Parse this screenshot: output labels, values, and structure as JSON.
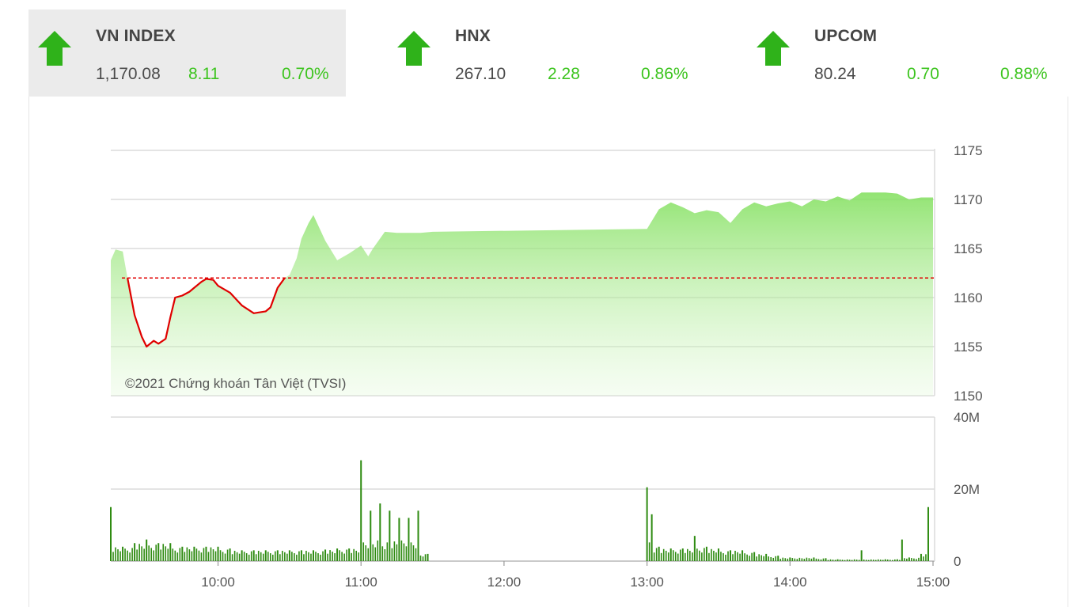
{
  "indices": [
    {
      "name": "VN INDEX",
      "price": "1,170.08",
      "change": "8.11",
      "percent": "0.70%",
      "direction": "up",
      "active": true
    },
    {
      "name": "HNX",
      "price": "267.10",
      "change": "2.28",
      "percent": "0.86%",
      "direction": "up",
      "active": false
    },
    {
      "name": "UPCOM",
      "price": "80.24",
      "change": "0.70",
      "percent": "0.88%",
      "direction": "up",
      "active": false
    }
  ],
  "colors": {
    "up": "#3cc41e",
    "arrow": "#2fb21a",
    "line_below_ref": "#e00000",
    "area_fill": "#9ee87e",
    "reference_line": "#e00000",
    "volume_bar": "#2e8b11",
    "grid": "#dcdcdc"
  },
  "copyright": "©2021 Chứng khoán Tân Việt (TVSI)",
  "chart_data": [
    {
      "type": "area",
      "y_ticks": [
        "1175",
        "1170",
        "1165",
        "1160",
        "1155",
        "1150"
      ],
      "ylim": [
        1150,
        1175
      ],
      "reference_value": 1162,
      "x": [
        "9:15",
        "9:17",
        "9:20",
        "9:22",
        "9:25",
        "9:28",
        "9:30",
        "9:33",
        "9:35",
        "9:38",
        "9:40",
        "9:42",
        "9:45",
        "9:48",
        "9:50",
        "9:53",
        "9:55",
        "9:58",
        "10:00",
        "10:05",
        "10:10",
        "10:15",
        "10:20",
        "10:22",
        "10:25",
        "10:28",
        "10:30",
        "10:33",
        "10:35",
        "10:38",
        "10:40",
        "10:45",
        "10:50",
        "10:55",
        "11:00",
        "11:03",
        "11:05",
        "11:10",
        "11:15",
        "11:20",
        "11:25",
        "11:30",
        "13:00",
        "13:05",
        "13:10",
        "13:15",
        "13:20",
        "13:25",
        "13:30",
        "13:35",
        "13:40",
        "13:45",
        "13:50",
        "13:55",
        "14:00",
        "14:05",
        "14:10",
        "14:15",
        "14:20",
        "14:25",
        "14:30",
        "14:35",
        "14:40",
        "14:45",
        "14:50",
        "14:55",
        "15:00"
      ],
      "values": [
        1163.8,
        1164.9,
        1164.7,
        1162.0,
        1158.2,
        1156.0,
        1155.0,
        1155.6,
        1155.3,
        1155.8,
        1158.0,
        1160.0,
        1160.2,
        1160.6,
        1161.0,
        1161.6,
        1161.9,
        1161.8,
        1161.2,
        1160.5,
        1159.2,
        1158.4,
        1158.6,
        1159.0,
        1161.0,
        1162.0,
        1162.3,
        1164.0,
        1166.0,
        1167.6,
        1168.4,
        1165.8,
        1163.8,
        1164.5,
        1165.3,
        1164.2,
        1165.0,
        1166.7,
        1166.6,
        1166.6,
        1166.6,
        1166.7,
        1167.0,
        1169.0,
        1169.7,
        1169.2,
        1168.6,
        1168.9,
        1168.7,
        1167.6,
        1169.0,
        1169.7,
        1169.3,
        1169.6,
        1169.8,
        1169.3,
        1170.0,
        1169.8,
        1170.3,
        1169.9,
        1170.7,
        1170.7,
        1170.7,
        1170.6,
        1170.0,
        1170.2,
        1170.2
      ]
    },
    {
      "type": "bar",
      "y_ticks": [
        "40M",
        "20M",
        "0"
      ],
      "ylim": [
        0,
        40
      ],
      "x_ticks": [
        "10:00",
        "11:00",
        "12:00",
        "13:00",
        "14:00",
        "15:00"
      ],
      "x": [
        "9:15",
        "9:20",
        "9:25",
        "9:30",
        "9:35",
        "9:40",
        "9:45",
        "9:50",
        "9:55",
        "10:00",
        "10:05",
        "10:10",
        "10:15",
        "10:20",
        "10:25",
        "10:30",
        "10:35",
        "10:40",
        "10:45",
        "10:50",
        "10:55",
        "11:00",
        "11:04",
        "11:08",
        "11:12",
        "11:16",
        "11:20",
        "11:24",
        "11:28",
        "13:00",
        "13:02",
        "13:05",
        "13:10",
        "13:15",
        "13:20",
        "13:25",
        "13:30",
        "13:35",
        "13:40",
        "13:45",
        "13:50",
        "13:55",
        "14:00",
        "14:10",
        "14:15",
        "14:20",
        "14:30",
        "14:40",
        "14:45",
        "14:47",
        "14:50",
        "14:55",
        "14:58"
      ],
      "values": [
        15,
        4,
        5,
        6,
        5,
        5,
        4,
        4,
        4,
        4,
        3.5,
        3,
        3,
        3,
        3,
        3,
        3,
        3,
        3.2,
        3.5,
        3.5,
        28,
        14,
        16,
        14,
        12,
        12,
        14,
        2,
        20.5,
        13,
        4,
        3.5,
        3.5,
        7,
        4,
        3.5,
        3,
        3,
        2.5,
        2,
        1.5,
        1,
        1,
        0.8,
        0.5,
        3,
        0.5,
        0.5,
        6,
        1,
        2,
        15
      ]
    }
  ]
}
